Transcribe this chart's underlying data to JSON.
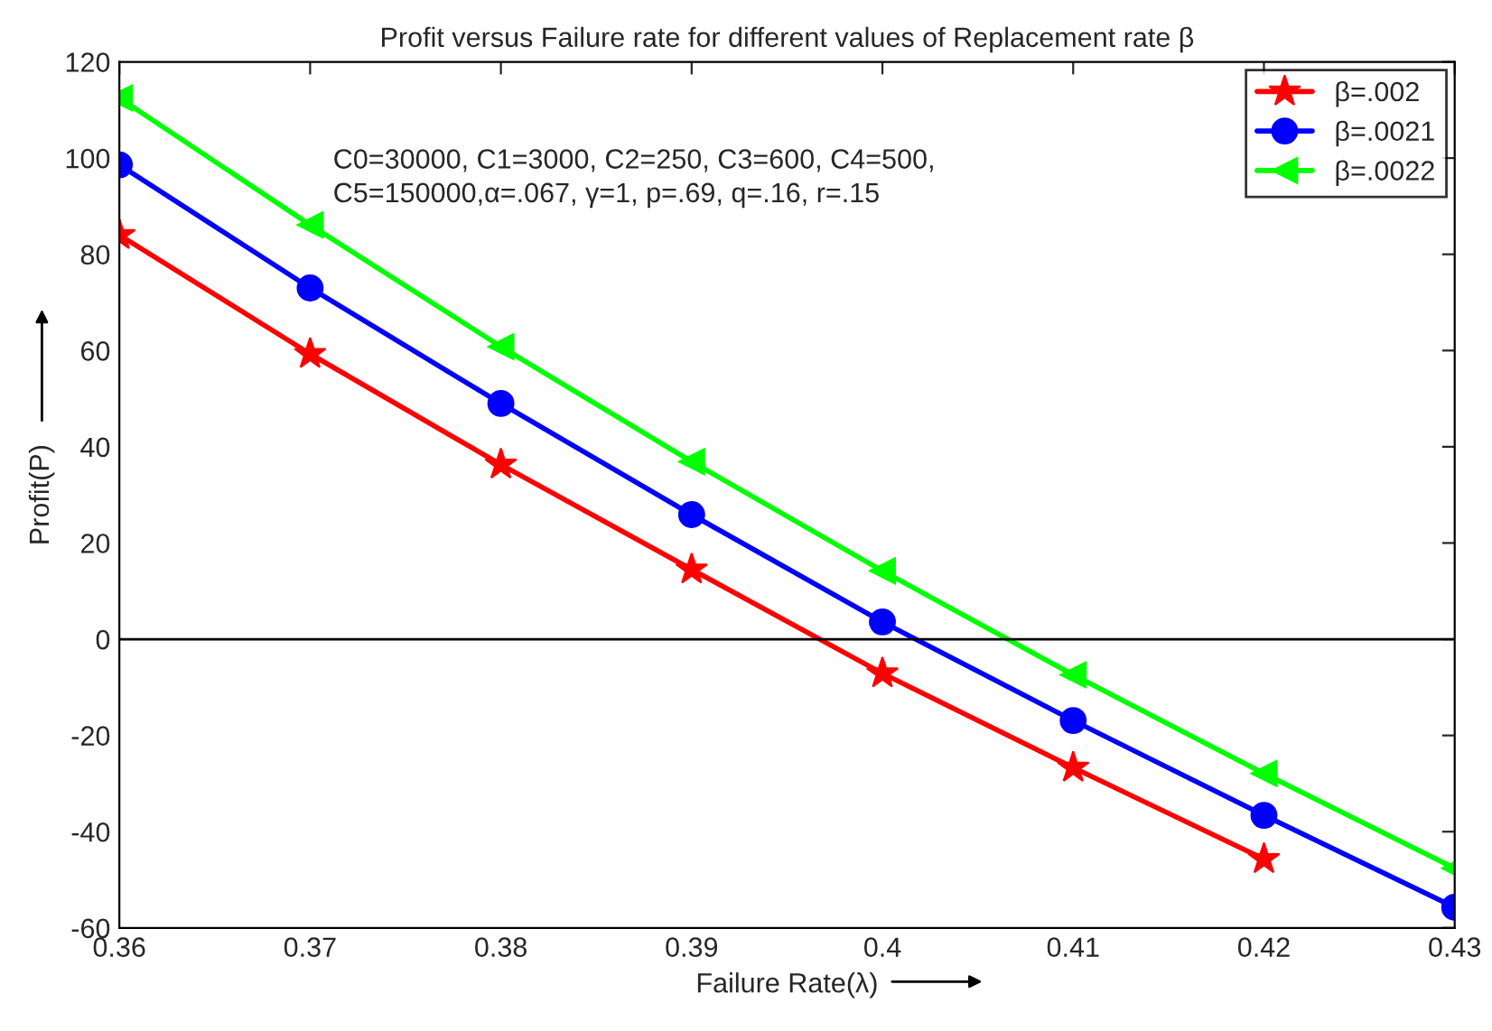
{
  "chart_data": {
    "type": "line",
    "title": "Profit versus Failure rate for different values of Replacement rate β",
    "xlabel": "Failure Rate(λ)",
    "ylabel": "Profit(P)",
    "annotations": [
      "C0=30000, C1=3000, C2=250, C3=600, C4=500,\nC5=150000,α=.067, γ=1, p=.69, q=.16, r=.15"
    ],
    "x": [
      0.36,
      0.37,
      0.38,
      0.39,
      0.4,
      0.41,
      0.42,
      0.43
    ],
    "series": [
      {
        "name": "β=.002",
        "color": "#ff0000",
        "marker": "star",
        "values": [
          84,
          59.3,
          36.3,
          14.5,
          -7.1,
          -26.7,
          -45.7,
          null
        ]
      },
      {
        "name": "β=.0021",
        "color": "#0000ff",
        "marker": "circle",
        "values": [
          98.6,
          73,
          49,
          25.9,
          3.6,
          -16.9,
          -36.6,
          -55.7
        ]
      },
      {
        "name": "β=.0022",
        "color": "#00ff00",
        "marker": "triangle",
        "values": [
          112.5,
          86.1,
          60.8,
          36.9,
          14.2,
          -7.4,
          -27.9,
          -47.6
        ]
      }
    ],
    "xlim": [
      0.36,
      0.43
    ],
    "xticks": [
      0.36,
      0.37,
      0.38,
      0.39,
      {
        "value": 0.4,
        "label": "0.4"
      },
      0.41,
      0.42,
      0.43
    ],
    "ylim": [
      -60,
      120
    ],
    "yticks": [
      -60,
      -40,
      -20,
      0,
      20,
      40,
      60,
      80,
      100,
      120
    ],
    "ref_lines": [
      {
        "axis": "y",
        "value": 0,
        "color": "#000000"
      }
    ],
    "legend": "top right",
    "grid": false,
    "line_style": "solid"
  }
}
